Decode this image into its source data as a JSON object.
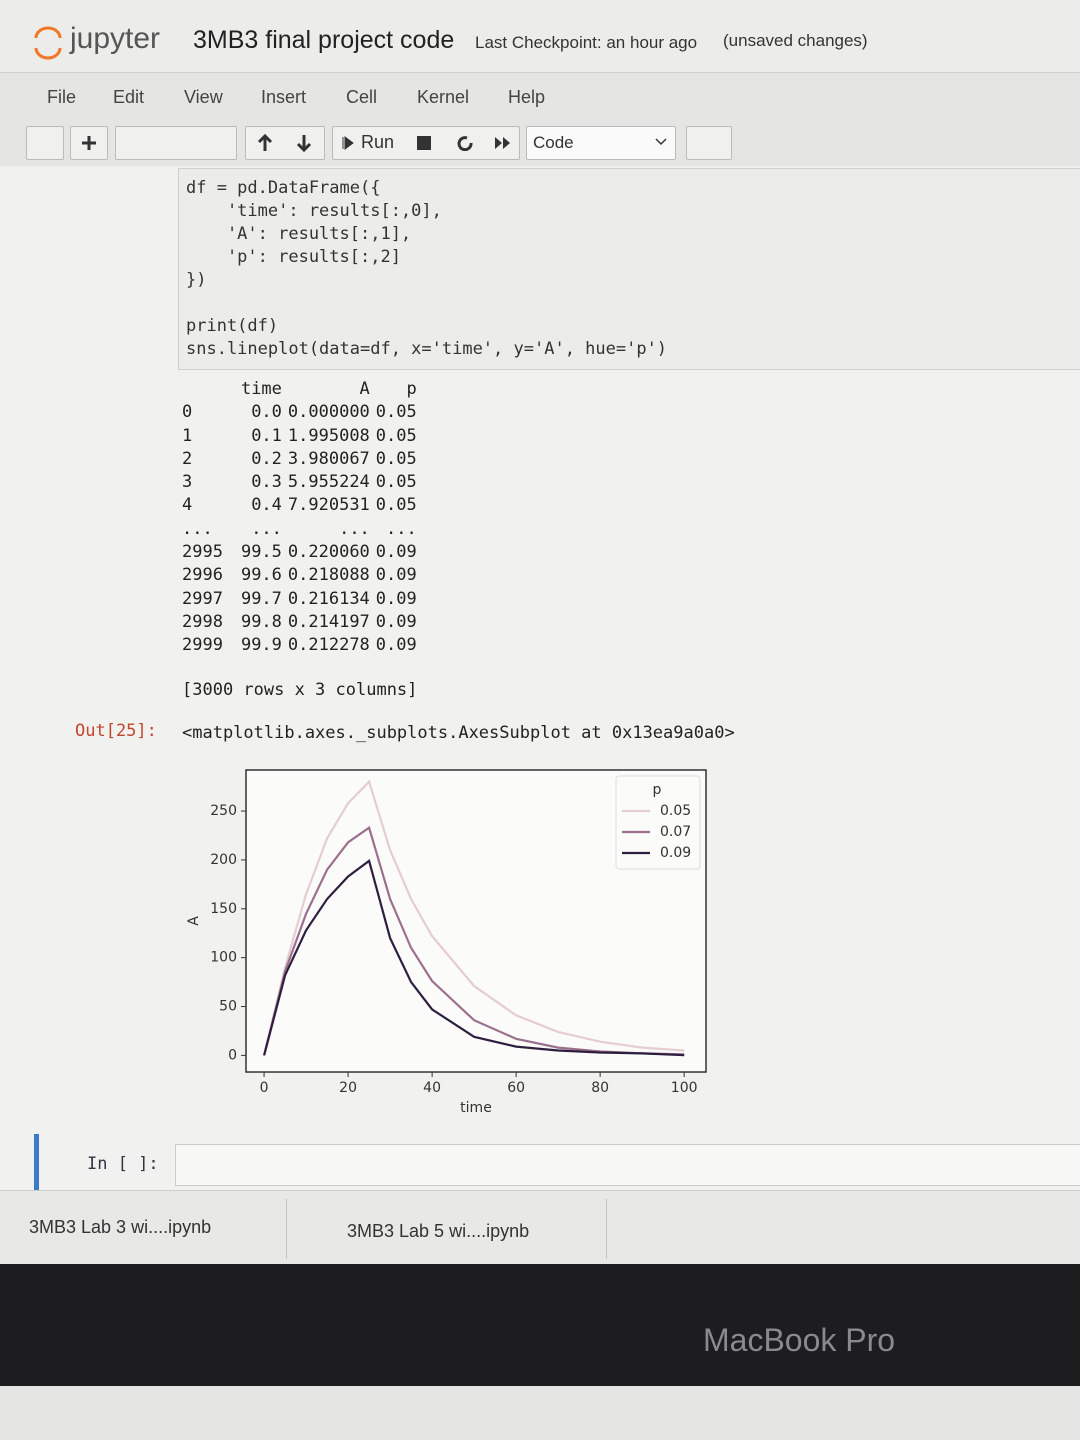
{
  "header": {
    "logo": "jupyter",
    "title": "3MB3 final project code",
    "checkpoint": "Last Checkpoint: an hour ago",
    "status": "(unsaved changes)"
  },
  "menu": [
    "File",
    "Edit",
    "View",
    "Insert",
    "Cell",
    "Kernel",
    "Help"
  ],
  "toolbar": {
    "run": "Run",
    "cell_type": "Code"
  },
  "code": {
    "blocks": [
      [
        "df = pd.DataFrame({",
        "    'time': results[:,0],",
        "    'A': results[:,1],",
        "    'p': results[:,2]",
        "})"
      ],
      [
        "print(df)",
        "sns.lineplot(data=df, x='time', y='A', hue='p')"
      ]
    ]
  },
  "table": {
    "columns": [
      "time",
      "A",
      "p"
    ],
    "rows": [
      [
        "0",
        "0.0",
        "0.000000",
        "0.05"
      ],
      [
        "1",
        "0.1",
        "1.995008",
        "0.05"
      ],
      [
        "2",
        "0.2",
        "3.980067",
        "0.05"
      ],
      [
        "3",
        "0.3",
        "5.955224",
        "0.05"
      ],
      [
        "4",
        "0.4",
        "7.920531",
        "0.05"
      ],
      [
        "...",
        "...",
        "...",
        "..."
      ],
      [
        "2995",
        "99.5",
        "0.220060",
        "0.09"
      ],
      [
        "2996",
        "99.6",
        "0.218088",
        "0.09"
      ],
      [
        "2997",
        "99.7",
        "0.216134",
        "0.09"
      ],
      [
        "2998",
        "99.8",
        "0.214197",
        "0.09"
      ],
      [
        "2999",
        "99.9",
        "0.212278",
        "0.09"
      ]
    ],
    "summary": "[3000 rows x 3 columns]"
  },
  "output": {
    "prompt": "Out[25]:",
    "repr": "<matplotlib.axes._subplots.AxesSubplot at 0x13ea9a0a0>"
  },
  "chart_data": {
    "type": "line",
    "x_label": "time",
    "y_label": "A",
    "legend_title": "p",
    "legend": "upper right",
    "grid": false,
    "x": [
      0,
      5,
      10,
      15,
      20,
      25,
      30,
      35,
      40,
      50,
      60,
      70,
      80,
      90,
      100
    ],
    "series": [
      {
        "name": "0.05",
        "color": "#e6cdd2",
        "values": [
          0,
          90,
          165,
          222,
          258,
          280,
          210,
          160,
          122,
          71,
          41,
          24,
          14,
          8,
          5
        ]
      },
      {
        "name": "0.07",
        "color": "#9c708c",
        "values": [
          0,
          86,
          145,
          190,
          218,
          233,
          160,
          110,
          76,
          36,
          17,
          8,
          4,
          2,
          1
        ]
      },
      {
        "name": "0.09",
        "color": "#2e1f40",
        "values": [
          0,
          82,
          128,
          160,
          183,
          199,
          120,
          75,
          47,
          19,
          9,
          5,
          3,
          2,
          0.2
        ]
      }
    ],
    "xlim": [
      -4.3,
      105.2
    ],
    "ylim": [
      -17,
      292
    ],
    "xticks": [
      0,
      20,
      40,
      60,
      80,
      100
    ],
    "yticks": [
      0,
      50,
      100,
      150,
      200,
      250
    ]
  },
  "next_cell": {
    "prompt": "In [ ]:"
  },
  "downloads": [
    "3MB3 Lab 3 wi....ipynb",
    "3MB3 Lab 5 wi....ipynb"
  ],
  "bezel": "MacBook Pro"
}
